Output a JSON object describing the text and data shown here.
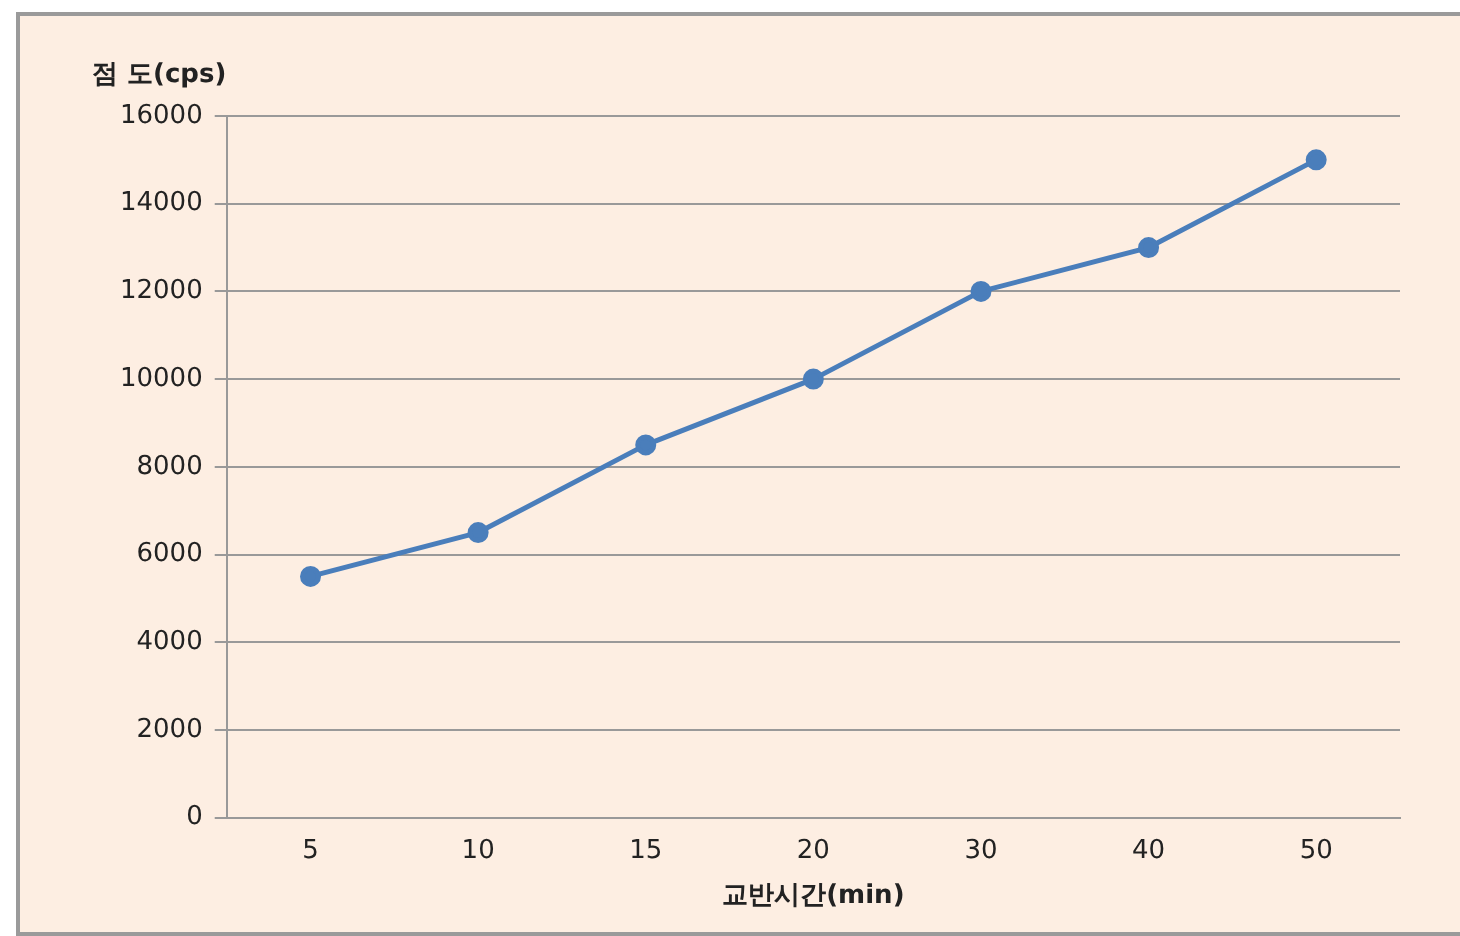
{
  "chart_data": {
    "type": "line",
    "ylabel": "점 도(cps)",
    "xlabel": "교반시간(min)",
    "categories": [
      "5",
      "10",
      "15",
      "20",
      "30",
      "40",
      "50"
    ],
    "series": [
      {
        "color": "#4a7ebb",
        "values": [
          5500,
          6500,
          8500,
          10000,
          12000,
          13000,
          15000
        ]
      }
    ],
    "ylim": [
      0,
      16000
    ],
    "yticks": [
      0,
      2000,
      4000,
      6000,
      8000,
      10000,
      12000,
      14000,
      16000
    ],
    "grid": "y",
    "legend": false,
    "marker": "circle",
    "line_style": "solid"
  }
}
